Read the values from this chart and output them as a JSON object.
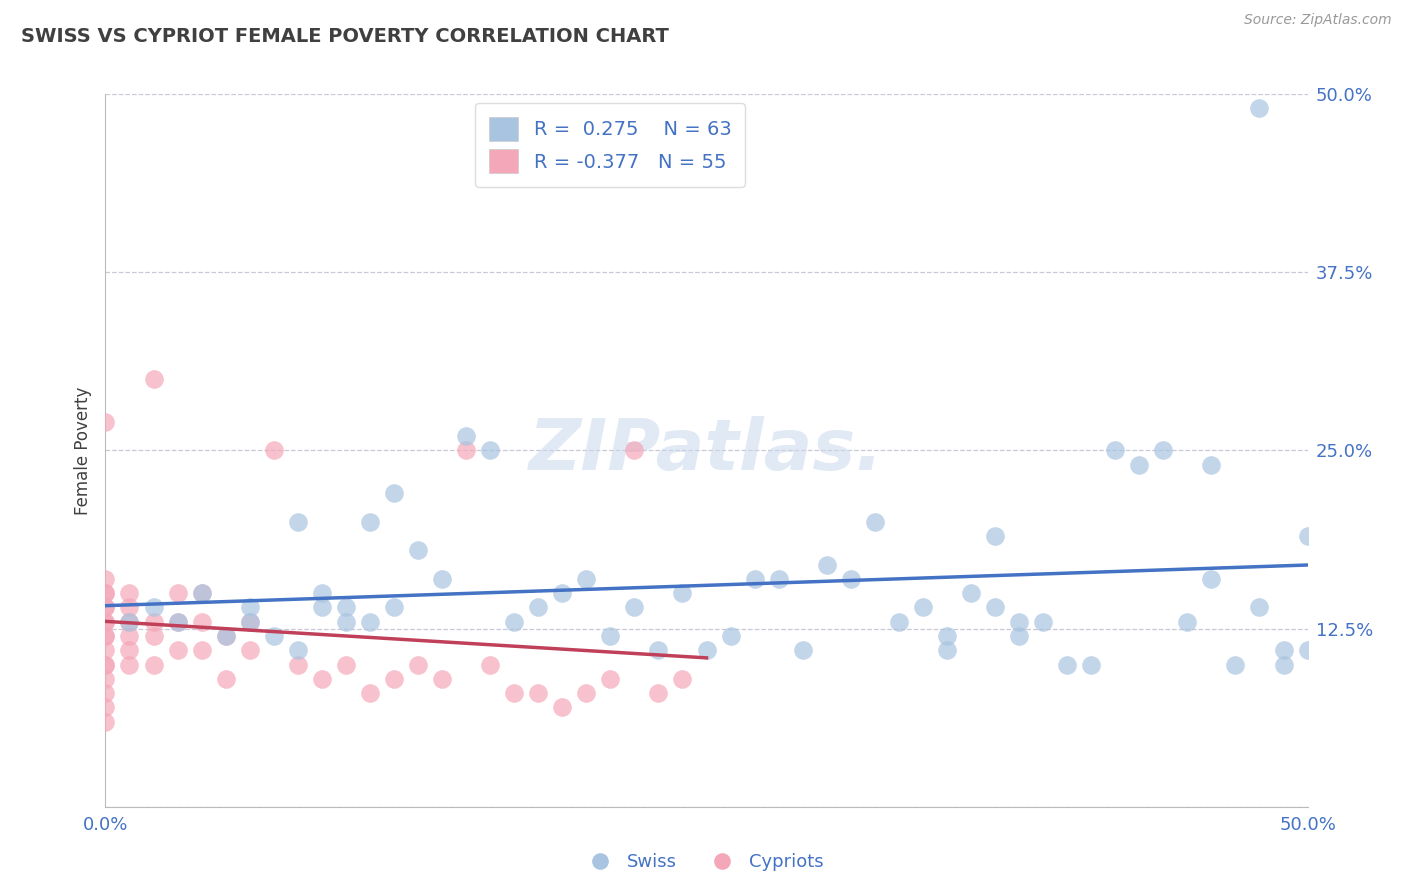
{
  "title": "SWISS VS CYPRIOT FEMALE POVERTY CORRELATION CHART",
  "source": "Source: ZipAtlas.com",
  "ylabel": "Female Poverty",
  "xlim": [
    0.0,
    0.5
  ],
  "ylim": [
    0.0,
    0.5
  ],
  "yticks": [
    0.0,
    0.125,
    0.25,
    0.375,
    0.5
  ],
  "xticks": [
    0.0,
    0.5
  ],
  "swiss_R": 0.275,
  "swiss_N": 63,
  "cypriot_R": -0.377,
  "cypriot_N": 55,
  "swiss_color": "#a8c4e0",
  "cypriot_color": "#f4a7b9",
  "swiss_line_color": "#4472c4",
  "cypriot_line_color": "#c0405a",
  "title_color": "#404040",
  "axis_label_color": "#4472c4",
  "legend_text_color": "#4472c4",
  "background_color": "#ffffff",
  "grid_color": "#c8c8d8",
  "watermark": "ZIPatlas.",
  "swiss_x": [
    0.01,
    0.02,
    0.03,
    0.04,
    0.05,
    0.06,
    0.06,
    0.07,
    0.08,
    0.08,
    0.09,
    0.09,
    0.1,
    0.1,
    0.11,
    0.11,
    0.12,
    0.12,
    0.13,
    0.14,
    0.15,
    0.16,
    0.17,
    0.18,
    0.19,
    0.2,
    0.21,
    0.22,
    0.23,
    0.24,
    0.25,
    0.26,
    0.27,
    0.28,
    0.29,
    0.3,
    0.31,
    0.32,
    0.33,
    0.34,
    0.35,
    0.35,
    0.36,
    0.37,
    0.38,
    0.38,
    0.39,
    0.4,
    0.41,
    0.42,
    0.43,
    0.44,
    0.45,
    0.46,
    0.47,
    0.48,
    0.49,
    0.49,
    0.5,
    0.5,
    0.37,
    0.46,
    0.48
  ],
  "swiss_y": [
    0.13,
    0.14,
    0.13,
    0.15,
    0.12,
    0.13,
    0.14,
    0.12,
    0.11,
    0.2,
    0.14,
    0.15,
    0.13,
    0.14,
    0.13,
    0.2,
    0.14,
    0.22,
    0.18,
    0.16,
    0.26,
    0.25,
    0.13,
    0.14,
    0.15,
    0.16,
    0.12,
    0.14,
    0.11,
    0.15,
    0.11,
    0.12,
    0.16,
    0.16,
    0.11,
    0.17,
    0.16,
    0.2,
    0.13,
    0.14,
    0.11,
    0.12,
    0.15,
    0.14,
    0.12,
    0.13,
    0.13,
    0.1,
    0.1,
    0.25,
    0.24,
    0.25,
    0.13,
    0.24,
    0.1,
    0.49,
    0.1,
    0.11,
    0.11,
    0.19,
    0.19,
    0.16,
    0.14
  ],
  "cypriot_x": [
    0.0,
    0.0,
    0.0,
    0.0,
    0.0,
    0.0,
    0.0,
    0.0,
    0.0,
    0.0,
    0.0,
    0.0,
    0.0,
    0.0,
    0.0,
    0.0,
    0.0,
    0.01,
    0.01,
    0.01,
    0.01,
    0.01,
    0.01,
    0.02,
    0.02,
    0.02,
    0.02,
    0.03,
    0.03,
    0.03,
    0.04,
    0.04,
    0.04,
    0.05,
    0.05,
    0.06,
    0.06,
    0.07,
    0.08,
    0.09,
    0.1,
    0.11,
    0.12,
    0.13,
    0.14,
    0.15,
    0.16,
    0.17,
    0.18,
    0.19,
    0.2,
    0.21,
    0.22,
    0.23,
    0.24
  ],
  "cypriot_y": [
    0.06,
    0.07,
    0.08,
    0.09,
    0.1,
    0.1,
    0.11,
    0.12,
    0.12,
    0.13,
    0.13,
    0.14,
    0.14,
    0.15,
    0.15,
    0.16,
    0.27,
    0.1,
    0.11,
    0.12,
    0.13,
    0.14,
    0.15,
    0.1,
    0.12,
    0.13,
    0.3,
    0.11,
    0.13,
    0.15,
    0.11,
    0.13,
    0.15,
    0.09,
    0.12,
    0.11,
    0.13,
    0.25,
    0.1,
    0.09,
    0.1,
    0.08,
    0.09,
    0.1,
    0.09,
    0.25,
    0.1,
    0.08,
    0.08,
    0.07,
    0.08,
    0.09,
    0.25,
    0.08,
    0.09
  ]
}
